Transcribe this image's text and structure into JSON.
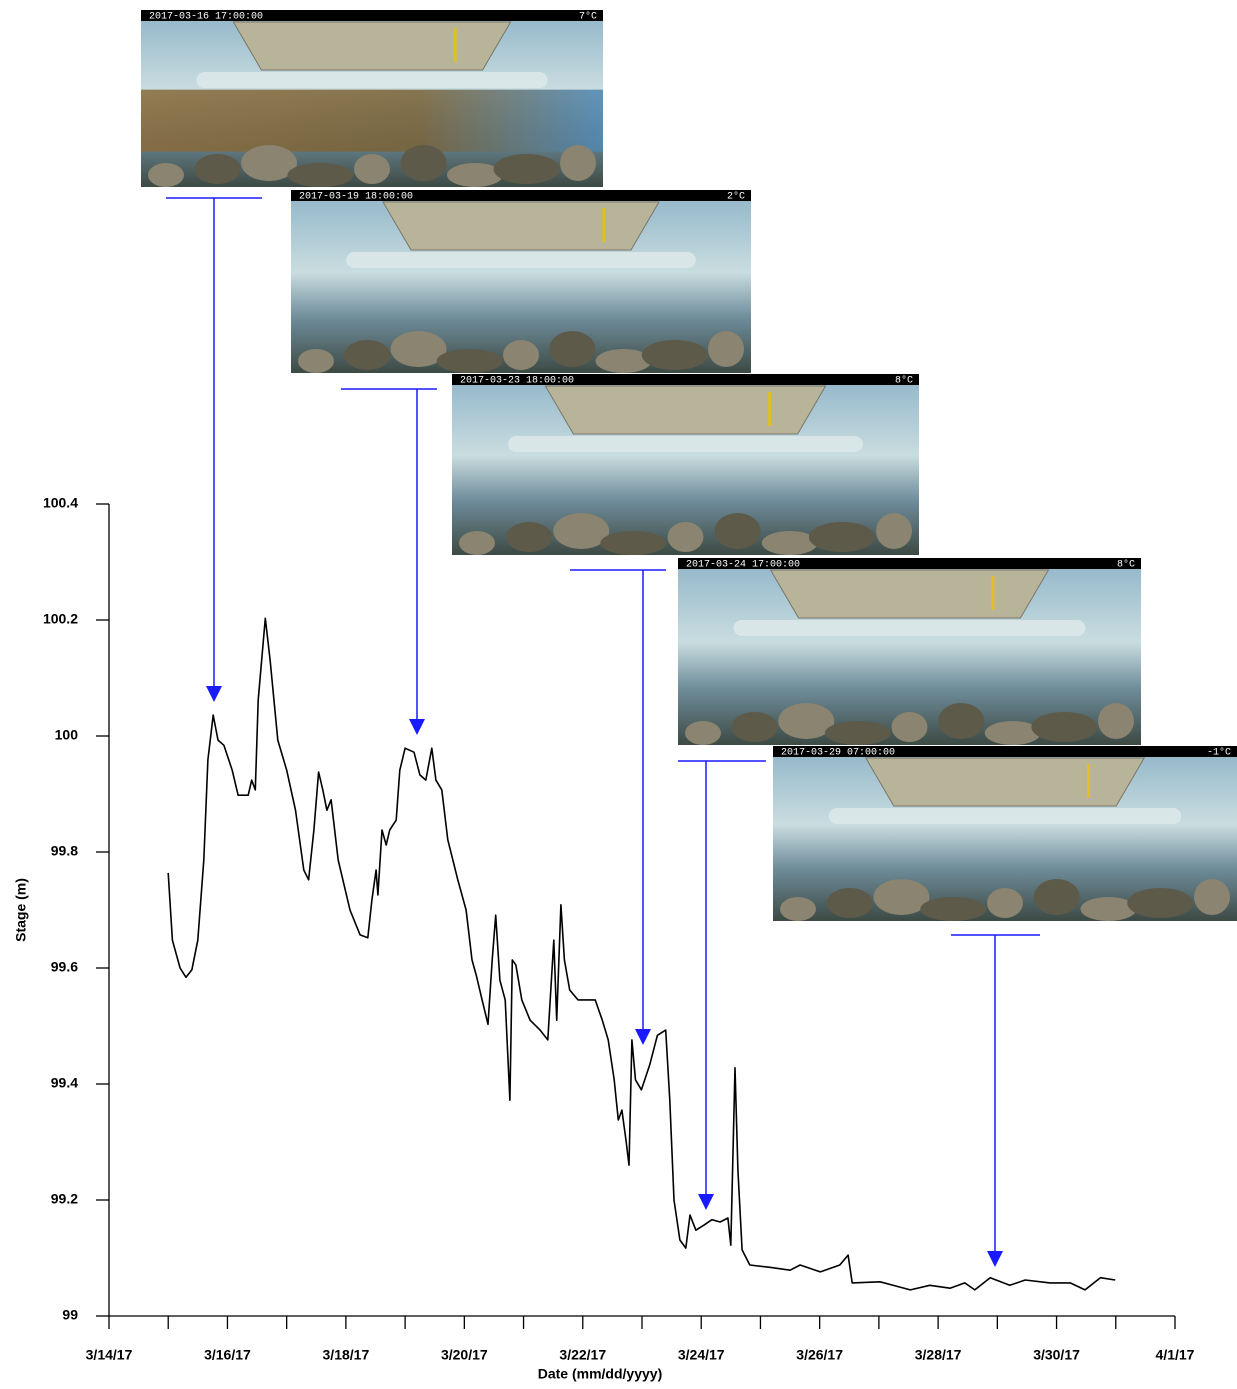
{
  "chart_data": {
    "type": "line",
    "xlabel": "Date (mm/dd/yyyy)",
    "ylabel": "Stage (m)",
    "x": [
      15.0,
      15.07,
      15.2,
      15.3,
      15.4,
      15.5,
      15.6,
      15.67,
      15.76,
      15.84,
      15.94,
      16.08,
      16.18,
      16.35,
      16.41,
      16.47,
      16.52,
      16.64,
      16.72,
      16.85,
      17.0,
      17.15,
      17.29,
      17.37,
      17.46,
      17.54,
      17.61,
      17.68,
      17.75,
      17.87,
      18.07,
      18.24,
      18.37,
      18.44,
      18.51,
      18.54,
      18.61,
      18.68,
      18.74,
      18.85,
      18.91,
      19.0,
      19.15,
      19.25,
      19.35,
      19.45,
      19.52,
      19.62,
      19.72,
      19.89,
      20.03,
      20.13,
      20.2,
      20.3,
      20.4,
      20.47,
      20.53,
      20.6,
      20.69,
      20.77,
      20.81,
      20.87,
      20.97,
      21.11,
      21.28,
      21.41,
      21.51,
      21.56,
      21.63,
      21.69,
      21.78,
      21.92,
      22.05,
      22.21,
      22.33,
      22.43,
      22.53,
      22.6,
      22.66,
      22.73,
      22.78,
      22.83,
      22.89,
      22.99,
      23.13,
      23.26,
      23.4,
      23.47,
      23.54,
      23.64,
      23.74,
      23.81,
      23.91,
      24.05,
      24.18,
      24.32,
      24.45,
      24.5,
      24.57,
      24.62,
      24.69,
      24.82,
      25.16,
      25.5,
      25.67,
      26.01,
      26.34,
      26.48,
      26.55,
      27.02,
      27.53,
      27.86,
      28.2,
      28.45,
      28.62,
      28.88,
      29.21,
      29.47,
      29.89,
      30.23,
      30.48,
      30.74,
      30.99
    ],
    "values": [
      99.764,
      99.648,
      99.6,
      99.584,
      99.597,
      99.648,
      99.786,
      99.959,
      100.036,
      99.993,
      99.984,
      99.941,
      99.898,
      99.898,
      99.924,
      99.907,
      100.062,
      100.203,
      100.131,
      99.993,
      99.941,
      99.872,
      99.769,
      99.752,
      99.838,
      99.938,
      99.907,
      99.872,
      99.89,
      99.786,
      99.7,
      99.657,
      99.652,
      99.717,
      99.769,
      99.726,
      99.838,
      99.812,
      99.838,
      99.855,
      99.941,
      99.979,
      99.972,
      99.933,
      99.924,
      99.979,
      99.924,
      99.907,
      99.821,
      99.752,
      99.7,
      99.614,
      99.588,
      99.545,
      99.503,
      99.614,
      99.691,
      99.579,
      99.545,
      99.372,
      99.614,
      99.605,
      99.545,
      99.51,
      99.493,
      99.476,
      99.648,
      99.51,
      99.709,
      99.614,
      99.562,
      99.545,
      99.545,
      99.545,
      99.51,
      99.476,
      99.407,
      99.338,
      99.355,
      99.303,
      99.26,
      99.476,
      99.407,
      99.39,
      99.433,
      99.484,
      99.493,
      99.372,
      99.2,
      99.131,
      99.117,
      99.174,
      99.148,
      99.157,
      99.166,
      99.162,
      99.169,
      99.122,
      99.428,
      99.252,
      99.114,
      99.088,
      99.084,
      99.079,
      99.088,
      99.076,
      99.088,
      99.105,
      99.057,
      99.059,
      99.045,
      99.053,
      99.048,
      99.057,
      99.045,
      99.066,
      99.053,
      99.062,
      99.057,
      99.057,
      99.045,
      99.066,
      99.062
    ],
    "color": "#000000",
    "xlim": [
      14,
      32
    ],
    "ylim": [
      99,
      100.4
    ],
    "xticks": [
      {
        "value": 14,
        "label": "3/14/17"
      },
      {
        "value": 16,
        "label": "3/16/17"
      },
      {
        "value": 18,
        "label": "3/18/17"
      },
      {
        "value": 20,
        "label": "3/20/17"
      },
      {
        "value": 22,
        "label": "3/22/17"
      },
      {
        "value": 24,
        "label": "3/24/17"
      },
      {
        "value": 26,
        "label": "3/26/17"
      },
      {
        "value": 28,
        "label": "3/28/17"
      },
      {
        "value": 30,
        "label": "3/30/17"
      },
      {
        "value": 32,
        "label": "4/1/17"
      }
    ],
    "xminor_ticks": [
      15,
      17,
      19,
      21,
      23,
      25,
      27,
      29,
      31
    ],
    "yticks": [
      99,
      99.2,
      99.4,
      99.6,
      99.8,
      100,
      100.2,
      100.4
    ],
    "annotations": [
      {
        "timestamp": "2017-03-16 17:00:00",
        "temperature": "7°C"
      },
      {
        "timestamp": "2017-03-19 18:00:00",
        "temperature": "2°C"
      },
      {
        "timestamp": "2017-03-23 18:00:00",
        "temperature": "8°C"
      },
      {
        "timestamp": "2017-03-24 17:00:00",
        "temperature": "8°C"
      },
      {
        "timestamp": "2017-03-29 07:00:00",
        "temperature": "-1°C"
      }
    ]
  }
}
